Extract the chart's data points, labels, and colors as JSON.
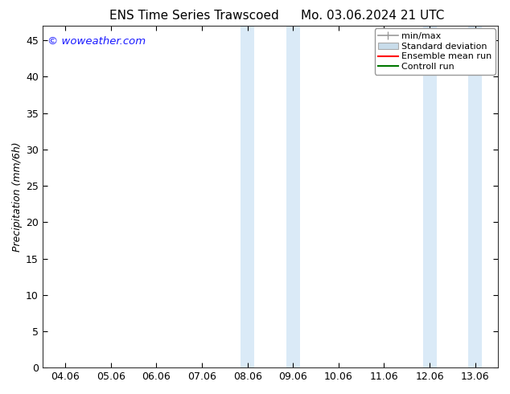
{
  "title_left": "ENS Time Series Trawscoed",
  "title_right": "Mo. 03.06.2024 21 UTC",
  "ylabel": "Precipitation (mm/6h)",
  "watermark_text": "© woweather.com",
  "x_ticks": [
    "04.06",
    "05.06",
    "06.06",
    "07.06",
    "08.06",
    "09.06",
    "10.06",
    "11.06",
    "12.06",
    "13.06"
  ],
  "x_tick_positions": [
    0,
    1,
    2,
    3,
    4,
    5,
    6,
    7,
    8,
    9
  ],
  "ylim": [
    0,
    47
  ],
  "yticks": [
    0,
    5,
    10,
    15,
    20,
    25,
    30,
    35,
    40,
    45
  ],
  "shaded_regions": [
    {
      "x_start": 3.85,
      "x_end": 4.15,
      "color": "#daeaf7"
    },
    {
      "x_start": 4.85,
      "x_end": 5.15,
      "color": "#daeaf7"
    },
    {
      "x_start": 7.85,
      "x_end": 8.15,
      "color": "#daeaf7"
    },
    {
      "x_start": 8.85,
      "x_end": 9.15,
      "color": "#daeaf7"
    }
  ],
  "bg_color": "#ffffff",
  "plot_bg_color": "#ffffff",
  "legend_labels": [
    "min/max",
    "Standard deviation",
    "Ensemble mean run",
    "Controll run"
  ],
  "minmax_color": "#999999",
  "stddev_color": "#c8dcea",
  "ensemble_color": "#ff0000",
  "control_color": "#007700",
  "watermark_color": "#1a1aff",
  "font_size": 9,
  "title_font_size": 11
}
